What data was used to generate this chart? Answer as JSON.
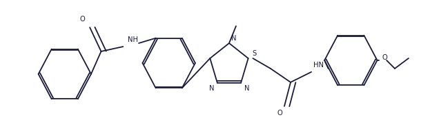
{
  "line_color": "#1a1a3a",
  "bg_color": "#ffffff",
  "lw": 1.3,
  "dbo": 0.013,
  "fs": 7.2,
  "figsize": [
    6.23,
    1.78
  ],
  "dpi": 100,
  "xlim": [
    -0.05,
    1.05
  ],
  "ylim": [
    0.0,
    1.0
  ]
}
